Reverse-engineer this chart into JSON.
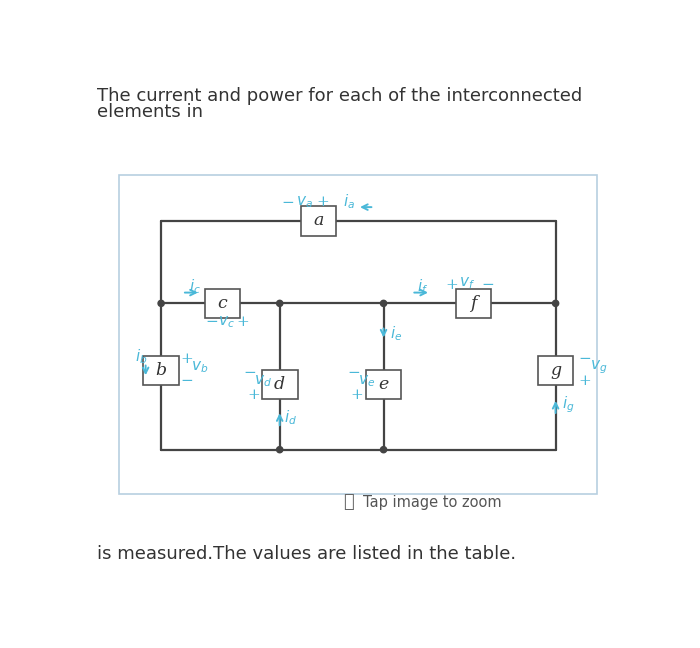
{
  "title_line1": "The current and power for each of the interconnected",
  "title_line2": "elements in",
  "footer_text": "is measured.The values are listed in the table.",
  "tap_text": "Tap image to zoom",
  "bg_color": "#ffffff",
  "box_bg": "#ffffff",
  "box_edge": "#555555",
  "wire_color": "#444444",
  "cyan": "#4ab8d8",
  "circuit_bg": "#ffffff",
  "circuit_border": "#b8cfe0",
  "title_fontsize": 13.0,
  "footer_fontsize": 13.0
}
